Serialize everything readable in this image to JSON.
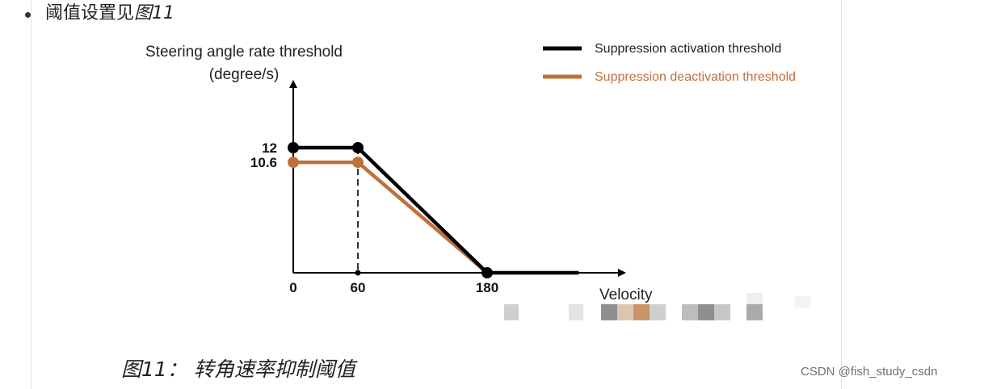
{
  "bullet": {
    "text": "阈值设置见",
    "figure_ref": "图11"
  },
  "caption": "图11： 转角速率抑制阈值",
  "watermark": "CSDN @fish_study_csdn",
  "colors": {
    "activation": "#000000",
    "deactivation": "#c0703a",
    "axis": "#000000"
  },
  "chart_data": {
    "type": "line",
    "ylabel_line1": "Steering angle rate threshold",
    "ylabel_line2": "(degree/s)",
    "xlabel": "Velocity",
    "x_ticks": [
      "0",
      "60",
      "180"
    ],
    "y_ticks": [
      "12",
      "10.6"
    ],
    "legend_position": "top-right",
    "series": [
      {
        "name": "Suppression activation threshold",
        "x": [
          0,
          60,
          180,
          265
        ],
        "y": [
          12,
          12,
          0,
          0
        ],
        "markers": [
          true,
          true,
          true,
          false
        ]
      },
      {
        "name": "Suppression deactivation threshold",
        "x": [
          0,
          60,
          180
        ],
        "y": [
          10.6,
          10.6,
          0
        ],
        "markers": [
          true,
          true,
          false
        ]
      }
    ],
    "dashed_reference_x": 60
  }
}
